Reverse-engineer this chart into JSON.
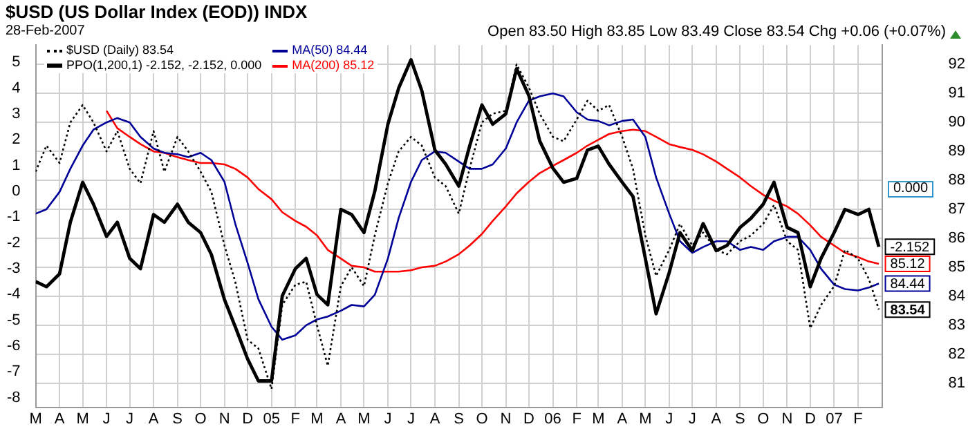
{
  "chart_data": {
    "type": "line",
    "title": "$USD (US Dollar Index (EOD)) INDX",
    "subtitle": "28-Feb-2007",
    "annotations": [
      "Open 83.50 High 83.85 Low 83.49 Close 83.54 Chg +0.06 (+0.07%)",
      "0.000"
    ],
    "x": [
      "2004-03-01",
      "2004-03-15",
      "2004-04-01",
      "2004-04-15",
      "2004-05-01",
      "2004-05-15",
      "2004-06-01",
      "2004-06-15",
      "2004-07-01",
      "2004-07-15",
      "2004-08-01",
      "2004-08-15",
      "2004-09-01",
      "2004-09-15",
      "2004-10-01",
      "2004-10-15",
      "2004-11-01",
      "2004-11-15",
      "2004-12-01",
      "2004-12-15",
      "2005-01-01",
      "2005-01-15",
      "2005-02-01",
      "2005-02-15",
      "2005-03-01",
      "2005-03-15",
      "2005-04-01",
      "2005-04-15",
      "2005-05-01",
      "2005-05-15",
      "2005-06-01",
      "2005-06-15",
      "2005-07-01",
      "2005-07-15",
      "2005-08-01",
      "2005-08-15",
      "2005-09-01",
      "2005-09-15",
      "2005-10-01",
      "2005-10-15",
      "2005-11-01",
      "2005-11-15",
      "2005-12-01",
      "2005-12-15",
      "2006-01-01",
      "2006-01-15",
      "2006-02-01",
      "2006-02-15",
      "2006-03-01",
      "2006-03-15",
      "2006-04-01",
      "2006-04-15",
      "2006-05-01",
      "2006-05-15",
      "2006-06-01",
      "2006-06-15",
      "2006-07-01",
      "2006-07-15",
      "2006-08-01",
      "2006-08-15",
      "2006-09-01",
      "2006-09-15",
      "2006-10-01",
      "2006-10-15",
      "2006-11-01",
      "2006-11-15",
      "2006-12-01",
      "2006-12-15",
      "2007-01-01",
      "2007-01-15",
      "2007-02-01",
      "2007-02-15",
      "2007-02-28"
    ],
    "series": [
      {
        "name": "$USD (Daily) 83.54",
        "type": "line",
        "axis": "y2",
        "color": "#000000",
        "line_style": "dotted",
        "values": [
          88.3,
          89.2,
          88.6,
          90.0,
          90.6,
          90.0,
          89.0,
          89.7,
          88.4,
          87.9,
          89.7,
          88.3,
          89.5,
          89.0,
          88.3,
          87.6,
          85.75,
          84.5,
          82.5,
          82.2,
          80.8,
          83.7,
          84.4,
          84.5,
          83.0,
          81.6,
          84.35,
          85.0,
          84.35,
          86.1,
          87.9,
          89.0,
          89.5,
          89.2,
          88.1,
          87.8,
          86.85,
          88.4,
          90.0,
          90.3,
          90.4,
          92.0,
          91.2,
          90.3,
          89.5,
          89.35,
          90.1,
          90.75,
          90.4,
          90.6,
          89.5,
          88.4,
          86.1,
          84.7,
          85.6,
          86.5,
          85.75,
          86.2,
          85.6,
          85.45,
          85.9,
          86.1,
          86.5,
          87.15,
          85.9,
          85.6,
          82.9,
          83.7,
          84.35,
          85.6,
          85.3,
          84.6,
          83.54
        ],
        "value_labels": [
          null,
          null,
          null,
          null,
          null,
          null,
          null,
          null,
          null,
          null,
          null,
          null,
          null,
          null,
          null,
          null,
          null,
          null,
          null,
          null,
          null,
          null,
          null,
          null,
          null,
          null,
          null,
          null,
          null,
          null,
          null,
          null,
          null,
          null,
          null,
          null,
          null,
          null,
          null,
          null,
          null,
          null,
          null,
          null,
          null,
          null,
          null,
          null,
          null,
          null,
          null,
          null,
          null,
          null,
          null,
          null,
          null,
          null,
          null,
          null,
          null,
          null,
          null,
          null,
          null,
          null,
          null,
          null,
          null,
          null,
          null,
          null,
          "83.54"
        ]
      },
      {
        "name": "MA(50) 84.44",
        "type": "line",
        "axis": "y2",
        "color": "#000099",
        "values": [
          86.85,
          87.0,
          87.6,
          88.4,
          89.2,
          89.75,
          90.0,
          90.15,
          90.0,
          89.5,
          89.1,
          88.95,
          88.9,
          88.8,
          88.95,
          88.7,
          87.95,
          86.5,
          85.15,
          83.9,
          82.95,
          82.5,
          82.65,
          83.0,
          83.2,
          83.3,
          83.5,
          83.7,
          83.65,
          84.05,
          85.3,
          86.7,
          87.95,
          88.7,
          89.0,
          88.95,
          88.65,
          88.4,
          88.4,
          88.55,
          89.1,
          90.0,
          90.75,
          90.9,
          91.0,
          90.9,
          90.35,
          90.1,
          90.05,
          89.9,
          90.05,
          90.1,
          89.5,
          88.1,
          86.85,
          85.9,
          85.5,
          85.7,
          85.9,
          85.9,
          85.6,
          85.7,
          85.6,
          85.9,
          86.05,
          86.05,
          85.6,
          84.95,
          84.4,
          84.25,
          84.2,
          84.3,
          84.44
        ],
        "value_labels": [
          null,
          null,
          null,
          null,
          null,
          null,
          null,
          null,
          null,
          null,
          null,
          null,
          null,
          null,
          null,
          null,
          null,
          null,
          null,
          null,
          null,
          null,
          null,
          null,
          null,
          null,
          null,
          null,
          null,
          null,
          null,
          null,
          null,
          null,
          null,
          null,
          null,
          null,
          null,
          null,
          null,
          null,
          null,
          null,
          null,
          null,
          null,
          null,
          null,
          null,
          null,
          null,
          null,
          null,
          null,
          null,
          null,
          null,
          null,
          null,
          null,
          null,
          null,
          null,
          null,
          null,
          null,
          null,
          null,
          null,
          null,
          null,
          "84.44"
        ]
      },
      {
        "name": "MA(200) 85.12",
        "type": "line",
        "axis": "y2",
        "color": "#ff0000",
        "values": [
          null,
          null,
          null,
          null,
          null,
          null,
          90.4,
          89.8,
          89.5,
          89.25,
          89.0,
          88.95,
          88.8,
          88.7,
          88.6,
          88.6,
          88.55,
          88.4,
          88.1,
          87.7,
          87.35,
          86.9,
          86.6,
          86.4,
          86.1,
          85.6,
          85.3,
          85.05,
          85.0,
          84.85,
          84.85,
          84.85,
          84.9,
          85.0,
          85.05,
          85.2,
          85.45,
          85.75,
          86.15,
          86.6,
          87.1,
          87.55,
          87.95,
          88.25,
          88.5,
          88.7,
          88.95,
          89.2,
          89.4,
          89.6,
          89.7,
          89.75,
          89.7,
          89.5,
          89.25,
          89.15,
          89.05,
          88.9,
          88.65,
          88.4,
          88.1,
          87.8,
          87.5,
          87.3,
          87.1,
          86.85,
          86.45,
          86.05,
          85.75,
          85.5,
          85.35,
          85.2,
          85.12
        ],
        "value_labels": [
          null,
          null,
          null,
          null,
          null,
          null,
          null,
          null,
          null,
          null,
          null,
          null,
          null,
          null,
          null,
          null,
          null,
          null,
          null,
          null,
          null,
          null,
          null,
          null,
          null,
          null,
          null,
          null,
          null,
          null,
          null,
          null,
          null,
          null,
          null,
          null,
          null,
          null,
          null,
          null,
          null,
          null,
          null,
          null,
          null,
          null,
          null,
          null,
          null,
          null,
          null,
          null,
          null,
          null,
          null,
          null,
          null,
          null,
          null,
          null,
          null,
          null,
          null,
          null,
          null,
          null,
          null,
          null,
          null,
          null,
          null,
          null,
          "85.12"
        ]
      },
      {
        "name": "PPO(1,200,1) -2.152, -2.152, 0.000",
        "type": "line",
        "axis": "y",
        "color": "#000000",
        "values": [
          -3.5,
          -3.7,
          -3.2,
          -1.2,
          0.35,
          -0.5,
          -1.75,
          -1.2,
          -2.6,
          -3.0,
          -0.9,
          -1.2,
          -0.5,
          -1.2,
          -1.6,
          -2.45,
          -4.2,
          -5.25,
          -6.5,
          -7.35,
          -7.35,
          -4.05,
          -3.0,
          -2.6,
          -4.0,
          -4.4,
          -0.7,
          -0.9,
          -1.6,
          0.0,
          2.6,
          4.0,
          5.1,
          3.9,
          1.6,
          1.05,
          0.2,
          1.75,
          3.35,
          2.6,
          3.0,
          4.75,
          3.7,
          1.95,
          0.9,
          0.35,
          0.5,
          1.6,
          1.75,
          1.05,
          0.35,
          -0.2,
          -2.6,
          -4.75,
          -3.15,
          -1.6,
          -2.3,
          -1.25,
          -2.3,
          -2.1,
          -1.4,
          -1.05,
          -0.5,
          0.35,
          -1.4,
          -1.6,
          -3.7,
          -2.6,
          -1.6,
          -0.7,
          -0.9,
          -0.7,
          -2.152
        ],
        "value_labels": [
          null,
          null,
          null,
          null,
          null,
          null,
          null,
          null,
          null,
          null,
          null,
          null,
          null,
          null,
          null,
          null,
          null,
          null,
          null,
          null,
          null,
          null,
          null,
          null,
          null,
          null,
          null,
          null,
          null,
          null,
          null,
          null,
          null,
          null,
          null,
          null,
          null,
          null,
          null,
          null,
          null,
          null,
          null,
          null,
          null,
          null,
          null,
          null,
          null,
          null,
          null,
          null,
          null,
          null,
          null,
          null,
          null,
          null,
          null,
          null,
          null,
          null,
          null,
          null,
          null,
          null,
          null,
          null,
          null,
          null,
          null,
          null,
          "-2.152"
        ]
      }
    ],
    "xlim": [
      "2004-03-01",
      "2007-03-04"
    ],
    "xticks": [
      {
        "value": "2004-03-01",
        "label": "M"
      },
      {
        "value": "2004-04-01",
        "label": "A"
      },
      {
        "value": "2004-05-01",
        "label": "M"
      },
      {
        "value": "2004-06-01",
        "label": "J"
      },
      {
        "value": "2004-07-01",
        "label": "J"
      },
      {
        "value": "2004-08-01",
        "label": "A"
      },
      {
        "value": "2004-09-01",
        "label": "S"
      },
      {
        "value": "2004-10-01",
        "label": "O"
      },
      {
        "value": "2004-11-01",
        "label": "N"
      },
      {
        "value": "2004-12-01",
        "label": "D"
      },
      {
        "value": "2005-01-01",
        "label": "05"
      },
      {
        "value": "2005-02-01",
        "label": "F"
      },
      {
        "value": "2005-03-01",
        "label": "M"
      },
      {
        "value": "2005-04-01",
        "label": "A"
      },
      {
        "value": "2005-05-01",
        "label": "M"
      },
      {
        "value": "2005-06-01",
        "label": "J"
      },
      {
        "value": "2005-07-01",
        "label": "J"
      },
      {
        "value": "2005-08-01",
        "label": "A"
      },
      {
        "value": "2005-09-01",
        "label": "S"
      },
      {
        "value": "2005-10-01",
        "label": "O"
      },
      {
        "value": "2005-11-01",
        "label": "N"
      },
      {
        "value": "2005-12-01",
        "label": "D"
      },
      {
        "value": "2006-01-01",
        "label": "06"
      },
      {
        "value": "2006-02-01",
        "label": "F"
      },
      {
        "value": "2006-03-01",
        "label": "M"
      },
      {
        "value": "2006-04-01",
        "label": "A"
      },
      {
        "value": "2006-05-01",
        "label": "M"
      },
      {
        "value": "2006-06-01",
        "label": "J"
      },
      {
        "value": "2006-07-01",
        "label": "J"
      },
      {
        "value": "2006-08-01",
        "label": "A"
      },
      {
        "value": "2006-09-01",
        "label": "S"
      },
      {
        "value": "2006-10-01",
        "label": "O"
      },
      {
        "value": "2006-11-01",
        "label": "N"
      },
      {
        "value": "2006-12-01",
        "label": "D"
      },
      {
        "value": "2007-01-01",
        "label": "07"
      },
      {
        "value": "2007-02-01",
        "label": "F"
      }
    ],
    "ylim": [
      -8.37,
      5.67
    ],
    "yticks": [
      -8,
      -7,
      -6,
      -5,
      -4,
      -3,
      -2,
      -1,
      0,
      1,
      2,
      3,
      4,
      5
    ],
    "y2lim": [
      80.17,
      92.67
    ],
    "y2ticks": [
      81,
      82,
      83,
      84,
      85,
      86,
      87,
      88,
      89,
      90,
      91,
      92
    ],
    "grid": true,
    "legend": "top left",
    "marker": "none"
  }
}
